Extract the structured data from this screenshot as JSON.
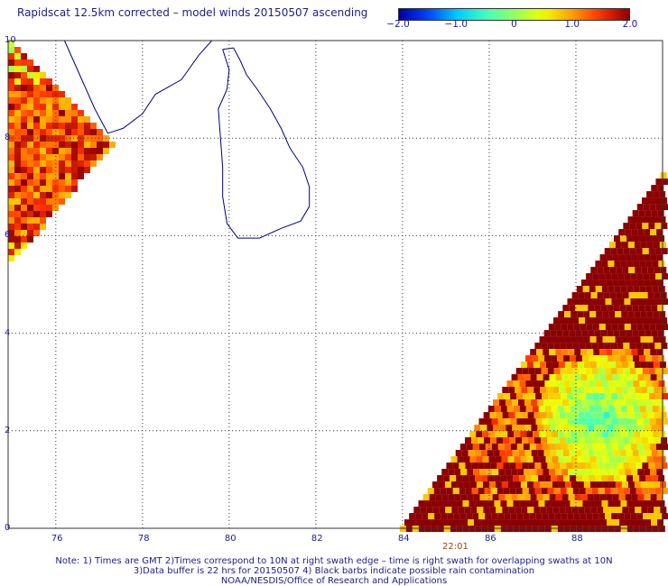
{
  "title": "Rapidscat 12.5km corrected – model winds 20150507 ascending",
  "colorbar": {
    "ticks": [
      {
        "label": "−2.0",
        "value": -2.0
      },
      {
        "label": "−1.0",
        "value": -1.0
      },
      {
        "label": "0",
        "value": 0
      },
      {
        "label": "1.0",
        "value": 1.0
      },
      {
        "label": "2.0",
        "value": 2.0
      }
    ],
    "range": [
      -2.0,
      2.0
    ]
  },
  "axes": {
    "x_ticks": [
      "76",
      "78",
      "80",
      "82",
      "84",
      "86",
      "88"
    ],
    "x_values": [
      76,
      78,
      80,
      82,
      84,
      86,
      88
    ],
    "y_ticks": [
      "0",
      "2",
      "4",
      "6",
      "8",
      "10"
    ],
    "y_values": [
      0,
      2,
      4,
      6,
      8,
      10
    ],
    "lon_range": [
      74.9,
      90
    ],
    "lat_range": [
      0,
      10
    ]
  },
  "swath_time": "22:01",
  "notes": [
    "Note: 1) Times are GMT 2)Times correspond to 10N at right swath edge – time is right swath for overlapping swaths at 10N",
    "3)Data buffer is 22 hrs for 20150507 4) Black barbs indicate possible rain contamination",
    "NOAA/NESDIS/Office of Research and Applications"
  ],
  "colors": {
    "text": "#1c1c8c",
    "coast": "#000080",
    "background_field": "#8b0000"
  }
}
